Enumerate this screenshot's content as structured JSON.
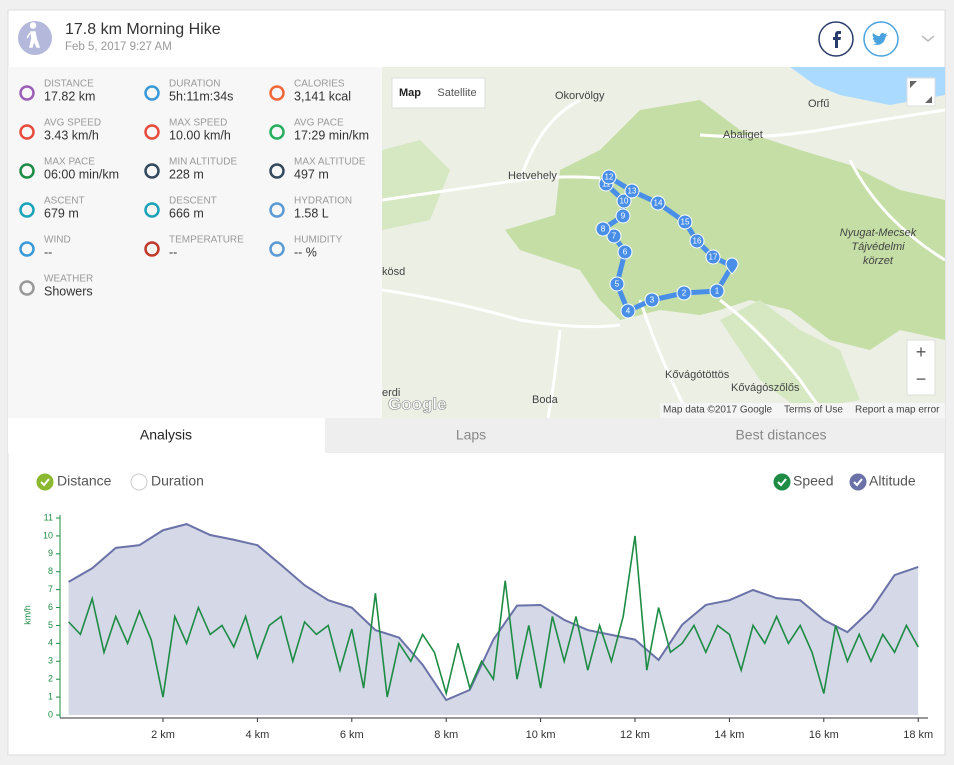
{
  "header": {
    "title": "17.8 km Morning Hike",
    "date": "Feb 5, 2017 9:27 AM"
  },
  "stats": [
    {
      "label": "DISTANCE",
      "value": "17.82 km"
    },
    {
      "label": "DURATION",
      "value": "5h:11m:34s"
    },
    {
      "label": "CALORIES",
      "value": "3,141 kcal"
    },
    {
      "label": "AVG SPEED",
      "value": "3.43 km/h"
    },
    {
      "label": "MAX SPEED",
      "value": "10.00 km/h"
    },
    {
      "label": "AVG PACE",
      "value": "17:29 min/km"
    },
    {
      "label": "MAX PACE",
      "value": "06:00 min/km"
    },
    {
      "label": "MIN ALTITUDE",
      "value": "228 m"
    },
    {
      "label": "MAX ALTITUDE",
      "value": "497 m"
    },
    {
      "label": "ASCENT",
      "value": "679 m"
    },
    {
      "label": "DESCENT",
      "value": "666 m"
    },
    {
      "label": "HYDRATION",
      "value": "1.58 L"
    },
    {
      "label": "WIND",
      "value": "--"
    },
    {
      "label": "TEMPERATURE",
      "value": "--"
    },
    {
      "label": "HUMIDITY",
      "value": "-- %"
    },
    {
      "label": "WEATHER",
      "value": "Showers"
    }
  ],
  "map": {
    "buttons": [
      "Map",
      "Satellite"
    ],
    "zoom": [
      "+",
      "−"
    ],
    "places": [
      "Okorvölgy",
      "Orfű",
      "Abaliget",
      "Hetvehely",
      "Nyugat-Mecsek",
      "Tájvédelmi",
      "körzet",
      "kösd",
      "Boda",
      "Kővágótöttös",
      "Kővágószőlős",
      "erdi"
    ],
    "waypoints": [
      "1",
      "2",
      "3",
      "4",
      "5",
      "6",
      "7",
      "8",
      "9",
      "10",
      "11",
      "12",
      "13",
      "14",
      "15",
      "16",
      "17"
    ],
    "logo": "Google",
    "attribution": [
      "Map data ©2017 Google",
      "Terms of Use",
      "Report a map error"
    ]
  },
  "tabs": [
    "Analysis",
    "Laps",
    "Best distances"
  ],
  "x_modes": [
    "Distance",
    "Duration"
  ],
  "chart_data": {
    "type": "line",
    "y_label": "km/h",
    "xlim": [
      0,
      18.15
    ],
    "xticks": [
      {
        "value": 2,
        "label": "2 km"
      },
      {
        "value": 4,
        "label": "4 km"
      },
      {
        "value": 6,
        "label": "6 km"
      },
      {
        "value": 8,
        "label": "8 km"
      },
      {
        "value": 10,
        "label": "10 km"
      },
      {
        "value": 12,
        "label": "12 km"
      },
      {
        "value": 14,
        "label": "14 km"
      },
      {
        "value": 16,
        "label": "16 km"
      },
      {
        "value": 18,
        "label": "18 km"
      }
    ],
    "ylim": [
      0,
      11
    ],
    "yticks": [
      0,
      1,
      2,
      3,
      4,
      5,
      6,
      7,
      8,
      9,
      10,
      11
    ],
    "y2lim": [
      210,
      500
    ],
    "series": [
      {
        "name": "Speed",
        "color": "#1e8c45",
        "x": [
          0,
          0.25,
          0.5,
          0.75,
          1,
          1.25,
          1.5,
          1.75,
          2,
          2.25,
          2.5,
          2.75,
          3,
          3.25,
          3.5,
          3.75,
          4,
          4.25,
          4.5,
          4.75,
          5,
          5.25,
          5.5,
          5.75,
          6,
          6.25,
          6.5,
          6.75,
          7,
          7.25,
          7.5,
          7.75,
          8,
          8.25,
          8.5,
          8.75,
          9,
          9.25,
          9.5,
          9.75,
          10,
          10.25,
          10.5,
          10.75,
          11,
          11.25,
          11.5,
          11.75,
          12,
          12.25,
          12.5,
          12.75,
          13,
          13.25,
          13.5,
          13.75,
          14,
          14.25,
          14.5,
          14.75,
          15,
          15.25,
          15.5,
          15.75,
          16,
          16.25,
          16.5,
          16.75,
          17,
          17.25,
          17.5,
          17.75,
          18
        ],
        "values": [
          5.2,
          4.5,
          6.5,
          3.5,
          5.5,
          4,
          5.8,
          4.2,
          1.0,
          5.5,
          4,
          6,
          4.5,
          5,
          3.8,
          5.5,
          3.2,
          5,
          5.5,
          3,
          5.2,
          4.5,
          5,
          2.5,
          4.8,
          1.5,
          6.8,
          1,
          4,
          3,
          4.5,
          3.5,
          1.2,
          4,
          1.5,
          3,
          2,
          7.5,
          2,
          5,
          1.5,
          5.5,
          3,
          5.5,
          2.5,
          5,
          3,
          5.5,
          10,
          2.5,
          6,
          3.5,
          4,
          5,
          3.5,
          5,
          4.5,
          2.5,
          5,
          4,
          5.5,
          4,
          5,
          3.5,
          1.2,
          5,
          3,
          4.5,
          3,
          4.5,
          3.5,
          5,
          3.8
        ]
      },
      {
        "name": "Altitude",
        "color": "#6a72a8",
        "fill": "#d4d8e7",
        "axis": "y2",
        "x": [
          0,
          0.5,
          1,
          1.5,
          2,
          2.5,
          3,
          3.5,
          4,
          4.5,
          5,
          5.5,
          6,
          6.5,
          7,
          7.5,
          8,
          8.5,
          9,
          9.5,
          10,
          10.5,
          11,
          11.5,
          12,
          12.5,
          13,
          13.5,
          14,
          14.5,
          15,
          15.5,
          16,
          16.5,
          17,
          17.5,
          18
        ],
        "values": [
          406,
          426,
          456,
          460,
          482,
          491,
          475,
          468,
          460,
          431,
          401,
          379,
          368,
          335,
          324,
          284,
          232,
          247,
          321,
          371,
          372,
          350,
          335,
          328,
          321,
          291,
          343,
          372,
          379,
          394,
          382,
          379,
          350,
          332,
          365,
          416,
          428
        ]
      }
    ]
  }
}
